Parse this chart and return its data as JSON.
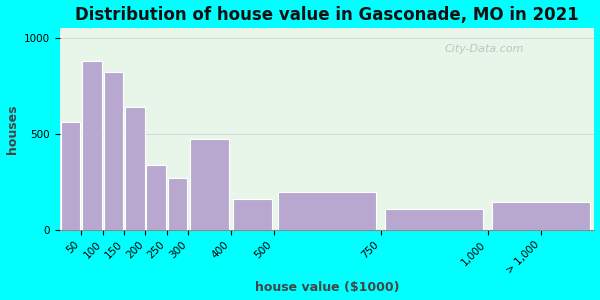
{
  "title": "Distribution of house value in Gasconade, MO in 2021",
  "xlabel": "house value ($1000)",
  "ylabel": "houses",
  "bar_labels": [
    "50",
    "100",
    "150",
    "200",
    "250",
    "300",
    "400",
    "500",
    "750",
    "1,000",
    "> 1,000"
  ],
  "bar_left_edges": [
    0,
    50,
    100,
    150,
    200,
    250,
    300,
    400,
    500,
    750,
    1000
  ],
  "bar_widths": [
    50,
    50,
    50,
    50,
    50,
    50,
    100,
    100,
    250,
    250,
    250
  ],
  "bar_values": [
    560,
    880,
    820,
    640,
    335,
    270,
    470,
    160,
    195,
    110,
    145
  ],
  "bar_color": "#b8a8d0",
  "bar_edge_color": "#ffffff",
  "ylim": [
    0,
    1050
  ],
  "yticks": [
    0,
    500,
    1000
  ],
  "tick_positions": [
    50,
    100,
    150,
    200,
    250,
    300,
    400,
    500,
    750,
    1000,
    1125
  ],
  "background_color": "#00ffff",
  "plot_bg_color": "#e8f5e9",
  "watermark": "City-Data.com",
  "title_fontsize": 12,
  "label_fontsize": 9,
  "tick_fontsize": 7.5
}
